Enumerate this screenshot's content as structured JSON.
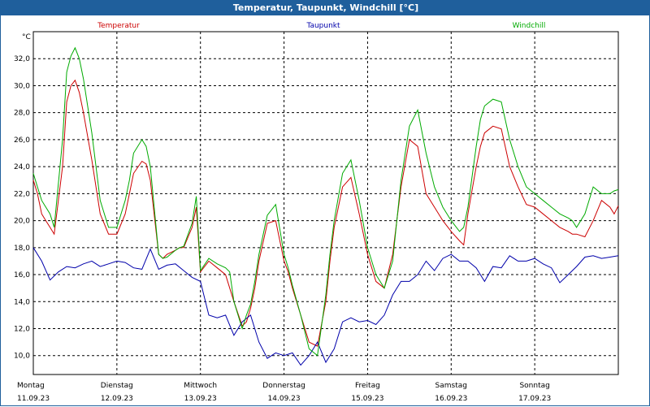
{
  "chart_data": {
    "type": "line",
    "title": "Temperatur, Taupunkt, Windchill [°C]",
    "ylabel": "°C",
    "ylim": [
      8.6,
      34.0
    ],
    "yticks": [
      "32,0",
      "30,0",
      "28,0",
      "26,0",
      "24,0",
      "22,0",
      "20,0",
      "18,0",
      "16,0",
      "14,0",
      "12,0",
      "10,0"
    ],
    "ytick_values": [
      32,
      30,
      28,
      26,
      24,
      22,
      20,
      18,
      16,
      14,
      12,
      10
    ],
    "xlim": [
      0,
      7
    ],
    "x_categories": [
      {
        "day": "Montag",
        "date": "11.09.23"
      },
      {
        "day": "Dienstag",
        "date": "12.09.23"
      },
      {
        "day": "Mittwoch",
        "date": "13.09.23"
      },
      {
        "day": "Donnerstag",
        "date": "14.09.23"
      },
      {
        "day": "Freitag",
        "date": "15.09.23"
      },
      {
        "day": "Samstag",
        "date": "16.09.23"
      },
      {
        "day": "Sonntag",
        "date": "17.09.23"
      }
    ],
    "grid": true,
    "legend_position": "top",
    "series": [
      {
        "name": "Temperatur",
        "color": "#cc0000",
        "x": [
          0,
          0.05,
          0.1,
          0.15,
          0.2,
          0.25,
          0.35,
          0.4,
          0.45,
          0.5,
          0.55,
          0.6,
          0.7,
          0.8,
          0.9,
          1.0,
          1.1,
          1.15,
          1.2,
          1.3,
          1.35,
          1.4,
          1.5,
          1.55,
          1.6,
          1.7,
          1.75,
          1.8,
          1.9,
          1.95,
          2.0,
          2.1,
          2.2,
          2.3,
          2.4,
          2.5,
          2.55,
          2.6,
          2.65,
          2.7,
          2.8,
          2.9,
          3.0,
          3.05,
          3.1,
          3.2,
          3.3,
          3.4,
          3.5,
          3.55,
          3.6,
          3.7,
          3.8,
          3.9,
          4.0,
          4.1,
          4.2,
          4.3,
          4.35,
          4.4,
          4.5,
          4.6,
          4.7,
          4.8,
          4.9,
          5.0,
          5.1,
          5.15,
          5.2,
          5.3,
          5.35,
          5.4,
          5.5,
          5.6,
          5.7,
          5.8,
          5.9,
          6.0,
          6.1,
          6.2,
          6.3,
          6.4,
          6.45,
          6.5,
          6.6,
          6.7,
          6.8,
          6.9,
          6.95,
          7.0
        ],
        "values": [
          23.0,
          22.0,
          20.5,
          20.0,
          19.5,
          19.0,
          24.0,
          28.8,
          30.0,
          30.4,
          29.5,
          28.0,
          24.5,
          20.5,
          19.0,
          19.0,
          20.5,
          22.0,
          23.5,
          24.4,
          24.2,
          23.0,
          17.5,
          17.2,
          17.5,
          17.8,
          18.0,
          18.0,
          19.5,
          21.0,
          16.2,
          17.0,
          16.5,
          16.0,
          14.0,
          12.2,
          12.5,
          13.5,
          15.0,
          17.0,
          19.8,
          20.0,
          17.0,
          16.2,
          15.0,
          13.0,
          11.0,
          10.7,
          14.0,
          17.0,
          19.5,
          22.5,
          23.2,
          20.5,
          17.5,
          15.5,
          15.0,
          17.5,
          20.0,
          22.5,
          26.0,
          25.5,
          22.0,
          21.0,
          20.0,
          19.2,
          18.5,
          18.2,
          20.5,
          24.0,
          25.5,
          26.5,
          27.0,
          26.8,
          24.0,
          22.5,
          21.2,
          21.0,
          20.5,
          20.0,
          19.5,
          19.2,
          19.0,
          19.0,
          18.8,
          20.0,
          21.5,
          21.0,
          20.5,
          21.1
        ]
      },
      {
        "name": "Taupunkt",
        "color": "#0000aa",
        "x": [
          0,
          0.1,
          0.2,
          0.3,
          0.4,
          0.5,
          0.6,
          0.7,
          0.8,
          0.9,
          1.0,
          1.1,
          1.2,
          1.3,
          1.4,
          1.5,
          1.6,
          1.7,
          1.8,
          1.9,
          2.0,
          2.1,
          2.2,
          2.3,
          2.4,
          2.5,
          2.6,
          2.7,
          2.8,
          2.9,
          3.0,
          3.1,
          3.2,
          3.3,
          3.4,
          3.5,
          3.6,
          3.7,
          3.8,
          3.9,
          4.0,
          4.1,
          4.2,
          4.3,
          4.4,
          4.5,
          4.6,
          4.7,
          4.8,
          4.9,
          5.0,
          5.1,
          5.2,
          5.3,
          5.4,
          5.5,
          5.6,
          5.7,
          5.8,
          5.9,
          6.0,
          6.1,
          6.2,
          6.3,
          6.4,
          6.5,
          6.6,
          6.7,
          6.8,
          6.9,
          7.0
        ],
        "values": [
          18.0,
          17.0,
          15.6,
          16.2,
          16.6,
          16.5,
          16.8,
          17.0,
          16.6,
          16.8,
          17.0,
          16.9,
          16.5,
          16.4,
          17.9,
          16.4,
          16.7,
          16.8,
          16.3,
          15.8,
          15.5,
          13.0,
          12.8,
          13.0,
          11.5,
          12.5,
          13.0,
          11.0,
          9.8,
          10.2,
          10.0,
          10.2,
          9.3,
          10.0,
          11.0,
          9.5,
          10.5,
          12.5,
          12.8,
          12.5,
          12.6,
          12.3,
          13.0,
          14.5,
          15.5,
          15.5,
          16.0,
          17.0,
          16.3,
          17.2,
          17.5,
          17.0,
          17.0,
          16.5,
          15.5,
          16.6,
          16.5,
          17.4,
          17.0,
          17.0,
          17.2,
          16.8,
          16.5,
          15.4,
          16.0,
          16.6,
          17.3,
          17.4,
          17.2,
          17.3,
          17.4
        ]
      },
      {
        "name": "Windchill",
        "color": "#00aa00",
        "x": [
          0,
          0.05,
          0.1,
          0.15,
          0.2,
          0.25,
          0.35,
          0.4,
          0.45,
          0.5,
          0.55,
          0.6,
          0.7,
          0.8,
          0.9,
          1.0,
          1.1,
          1.15,
          1.2,
          1.3,
          1.35,
          1.4,
          1.5,
          1.55,
          1.6,
          1.7,
          1.75,
          1.8,
          1.9,
          1.95,
          2.0,
          2.1,
          2.2,
          2.3,
          2.35,
          2.4,
          2.5,
          2.55,
          2.6,
          2.65,
          2.7,
          2.8,
          2.9,
          3.0,
          3.05,
          3.1,
          3.2,
          3.3,
          3.4,
          3.5,
          3.55,
          3.6,
          3.7,
          3.8,
          3.9,
          4.0,
          4.1,
          4.2,
          4.3,
          4.35,
          4.4,
          4.5,
          4.6,
          4.7,
          4.8,
          4.9,
          5.0,
          5.1,
          5.15,
          5.2,
          5.3,
          5.35,
          5.4,
          5.5,
          5.6,
          5.7,
          5.8,
          5.9,
          6.0,
          6.1,
          6.2,
          6.3,
          6.4,
          6.45,
          6.5,
          6.6,
          6.7,
          6.8,
          6.9,
          6.95,
          7.0
        ],
        "values": [
          23.5,
          22.5,
          21.5,
          21.0,
          20.5,
          19.5,
          26.0,
          31.0,
          32.2,
          32.8,
          32.0,
          30.5,
          26.5,
          21.5,
          19.5,
          19.5,
          21.5,
          23.0,
          25.0,
          26.0,
          25.5,
          24.0,
          17.5,
          17.2,
          17.3,
          17.8,
          18.0,
          18.1,
          19.8,
          21.8,
          16.3,
          17.2,
          16.8,
          16.5,
          16.2,
          14.0,
          12.0,
          13.0,
          13.8,
          15.5,
          17.5,
          20.4,
          21.2,
          17.5,
          16.5,
          15.2,
          13.0,
          10.5,
          10.0,
          14.5,
          17.5,
          20.0,
          23.5,
          24.5,
          21.5,
          18.0,
          16.0,
          15.0,
          17.0,
          20.0,
          23.0,
          27.0,
          28.2,
          25.0,
          22.5,
          21.0,
          20.0,
          19.2,
          19.5,
          21.0,
          25.5,
          27.5,
          28.5,
          29.0,
          28.8,
          26.0,
          24.0,
          22.5,
          22.0,
          21.5,
          21.0,
          20.5,
          20.2,
          20.0,
          19.5,
          20.5,
          22.5,
          22.0,
          22.0,
          22.2,
          22.3
        ]
      }
    ]
  }
}
